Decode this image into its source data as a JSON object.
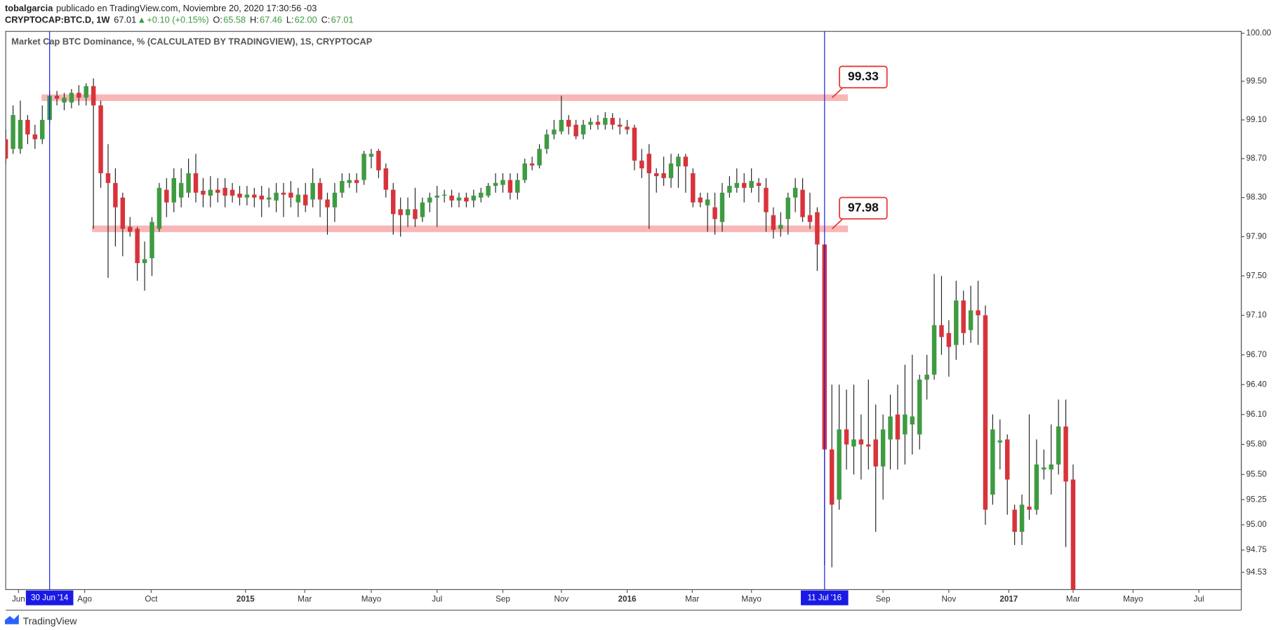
{
  "header": {
    "author": "tobalgarcia",
    "published": "publicado en TradingView.com, Noviembre 20, 2020 17:30:56 -03",
    "symbol": "CRYPTOCAP:BTC.D, 1W",
    "quote_parts": [
      "67.01",
      "▲",
      "+0.10 (+0.15%)",
      "O:",
      "65.58",
      "H:",
      "67.46",
      "L:",
      "62.00",
      "C:",
      "67.01"
    ]
  },
  "footer": {
    "brand": "TradingView"
  },
  "chart_data": {
    "type": "candlestick",
    "title": "Market Cap BTC Dominance, % (CALCULATED BY TRADINGVIEW), 1S, CRYPTOCAP",
    "log_scale": true,
    "grid": false,
    "up_color": "#3f9b42",
    "down_color": "#d8333b",
    "level_color": "#f9b6b6",
    "marker_color": "#1a1ae6",
    "xlim": [
      0,
      169
    ],
    "ylim": [
      94.36,
      100.02
    ],
    "yticks": [
      {
        "value": 100,
        "label": "100.00"
      },
      {
        "value": 99.5,
        "label": "99.50"
      },
      {
        "value": 99.1,
        "label": "99.10"
      },
      {
        "value": 98.7,
        "label": "98.70"
      },
      {
        "value": 98.3,
        "label": "98.30"
      },
      {
        "value": 97.9,
        "label": "97.90"
      },
      {
        "value": 97.5,
        "label": "97.50"
      },
      {
        "value": 97.1,
        "label": "97.10"
      },
      {
        "value": 96.7,
        "label": "96.70"
      },
      {
        "value": 96.4,
        "label": "96.40"
      },
      {
        "value": 96.1,
        "label": "96.10"
      },
      {
        "value": 95.8,
        "label": "95.80"
      },
      {
        "value": 95.5,
        "label": "95.50"
      },
      95.25,
      {
        "value": 95,
        "label": "95.00"
      },
      94.75,
      94.53
    ],
    "xticks": [
      {
        "value": 1.75,
        "label": "Jun"
      },
      {
        "value": 10.8,
        "label": "Ago"
      },
      {
        "value": 19.9,
        "label": "Oct"
      },
      {
        "value": 32.8,
        "label": "2015"
      },
      {
        "value": 40.9,
        "label": "Mar"
      },
      {
        "value": 50,
        "label": "Mayo"
      },
      {
        "value": 59,
        "label": "Jul"
      },
      {
        "value": 68,
        "label": "Sep"
      },
      {
        "value": 76,
        "label": "Nov"
      },
      {
        "value": 85,
        "label": "2016"
      },
      {
        "value": 93.9,
        "label": "Mar"
      },
      {
        "value": 102,
        "label": "Mayo"
      },
      {
        "value": 120,
        "label": "Sep"
      },
      {
        "value": 129,
        "label": "Nov"
      },
      {
        "value": 137.2,
        "label": "2017"
      },
      {
        "value": 146,
        "label": "Mar"
      },
      {
        "value": 154.2,
        "label": "Mayo"
      },
      {
        "value": 163.2,
        "label": "Jul"
      }
    ],
    "markers": [
      {
        "x": 6,
        "label": "30 Jun '14"
      },
      {
        "x": 112,
        "label": "11 Jul '16"
      }
    ],
    "levels": [
      99.33,
      97.98
    ],
    "open": [
      98.9,
      98.8,
      98.8,
      99.1,
      98.95,
      98.9,
      99.1,
      99.35,
      99.28,
      99.28,
      99.38,
      99.33,
      99.45,
      99.25,
      98.55,
      98.45,
      98.3,
      98.0,
      97.98,
      97.63,
      97.68,
      97.98,
      98.38,
      98.25,
      98.3,
      98.35,
      98.55,
      98.37,
      98.32,
      98.38,
      98.4,
      98.38,
      98.34,
      98.3,
      98.33,
      98.32,
      98.28,
      98.27,
      98.35,
      98.35,
      98.25,
      98.33,
      98.28,
      98.45,
      98.28,
      98.2,
      98.35,
      98.45,
      98.48,
      98.48,
      98.72,
      98.78,
      98.6,
      98.38,
      98.18,
      98.12,
      98.18,
      98.1,
      98.25,
      98.3,
      98.32,
      98.32,
      98.27,
      98.3,
      98.27,
      98.3,
      98.32,
      98.42,
      98.43,
      98.48,
      98.35,
      98.48,
      98.65,
      98.63,
      98.8,
      98.95,
      98.98,
      99.1,
      99.05,
      98.95,
      99.05,
      99.08,
      99.05,
      99.12,
      99.05,
      99.03,
      99.02,
      98.68,
      98.75,
      98.55,
      98.55,
      98.5,
      98.62,
      98.72,
      98.55,
      98.3,
      98.22,
      98.2,
      98.05,
      98.35,
      98.4,
      98.45,
      98.4,
      98.45,
      98.4,
      98.12,
      97.98,
      98.08,
      98.3,
      98.38,
      98.12,
      98.15,
      97.82,
      95.75,
      95.25,
      95.95,
      95.78,
      95.85,
      95.8,
      95.85,
      95.58,
      95.85,
      96.1,
      95.9,
      96.0,
      95.9,
      96.45,
      96.5,
      97.0,
      96.92,
      96.8,
      97.25,
      96.95,
      97.15,
      97.1,
      95.3,
      95.82,
      95.85,
      95.15,
      94.93,
      95.18,
      95.15,
      95.55,
      95.55,
      95.6,
      95.98,
      95.45
    ],
    "high": [
      99.0,
      99.25,
      99.3,
      99.15,
      99.05,
      99.25,
      99.4,
      99.4,
      99.38,
      99.42,
      99.46,
      99.48,
      99.53,
      99.3,
      98.85,
      98.6,
      98.35,
      98.1,
      98.0,
      97.85,
      98.1,
      98.45,
      98.5,
      98.6,
      98.6,
      98.7,
      98.75,
      98.5,
      98.52,
      98.5,
      98.5,
      98.45,
      98.42,
      98.42,
      98.4,
      98.42,
      98.4,
      98.45,
      98.45,
      98.47,
      98.4,
      98.45,
      98.6,
      98.5,
      98.35,
      98.45,
      98.55,
      98.55,
      98.55,
      98.78,
      98.8,
      98.8,
      98.65,
      98.45,
      98.3,
      98.3,
      98.4,
      98.3,
      98.35,
      98.42,
      98.38,
      98.38,
      98.35,
      98.35,
      98.38,
      98.4,
      98.45,
      98.55,
      98.55,
      98.55,
      98.55,
      98.7,
      98.72,
      98.85,
      99.0,
      99.1,
      99.35,
      99.15,
      99.1,
      99.1,
      99.12,
      99.15,
      99.18,
      99.17,
      99.12,
      99.1,
      99.05,
      98.8,
      98.85,
      98.6,
      98.72,
      98.75,
      98.75,
      98.75,
      98.6,
      98.35,
      98.35,
      98.35,
      98.45,
      98.52,
      98.6,
      98.55,
      98.6,
      98.5,
      98.5,
      98.2,
      98.15,
      98.35,
      98.5,
      98.5,
      98.35,
      98.2,
      97.82,
      96.4,
      96.4,
      96.35,
      96.4,
      96.1,
      96.45,
      96.2,
      96.1,
      96.3,
      96.4,
      96.6,
      96.7,
      96.5,
      96.7,
      97.52,
      97.5,
      97.05,
      97.45,
      97.35,
      97.4,
      97.45,
      97.2,
      96.1,
      96.05,
      95.9,
      95.2,
      95.3,
      96.1,
      95.85,
      95.75,
      96.0,
      96.25,
      96.25,
      95.6
    ],
    "low": [
      98.65,
      98.75,
      98.75,
      98.85,
      98.8,
      98.85,
      99.05,
      99.25,
      99.2,
      99.22,
      99.25,
      99.25,
      97.98,
      98.4,
      97.48,
      97.8,
      97.7,
      97.9,
      97.45,
      97.35,
      97.5,
      97.95,
      98.1,
      98.15,
      98.2,
      98.3,
      98.25,
      98.2,
      98.2,
      98.25,
      98.2,
      98.25,
      98.22,
      98.22,
      98.2,
      98.1,
      98.2,
      98.15,
      98.1,
      98.2,
      98.1,
      98.15,
      98.2,
      98.1,
      97.92,
      98.05,
      98.3,
      98.4,
      98.35,
      98.43,
      98.6,
      98.5,
      98.3,
      97.92,
      97.9,
      98.0,
      98.0,
      98.05,
      98.15,
      98.0,
      98.25,
      98.2,
      98.2,
      98.2,
      98.2,
      98.25,
      98.3,
      98.35,
      98.35,
      98.28,
      98.28,
      98.45,
      98.58,
      98.6,
      98.75,
      98.9,
      98.95,
      98.95,
      98.9,
      98.9,
      99.0,
      99.0,
      99.0,
      99.0,
      98.95,
      98.95,
      98.58,
      98.5,
      97.98,
      98.35,
      98.42,
      98.4,
      98.4,
      98.35,
      98.2,
      98.2,
      97.95,
      97.92,
      97.95,
      98.3,
      98.35,
      98.25,
      98.35,
      98.25,
      97.95,
      97.88,
      97.9,
      97.92,
      98.15,
      98.05,
      97.98,
      97.55,
      94.6,
      94.58,
      95.15,
      95.55,
      95.5,
      95.45,
      95.55,
      94.93,
      95.25,
      95.55,
      95.55,
      95.6,
      95.7,
      95.75,
      96.25,
      96.45,
      96.7,
      96.48,
      96.65,
      96.8,
      96.82,
      96.8,
      95.0,
      95.2,
      95.55,
      95.1,
      94.8,
      94.8,
      95.05,
      95.1,
      95.45,
      95.3,
      95.5,
      94.78,
      94.1
    ],
    "close": [
      98.7,
      99.15,
      99.1,
      98.95,
      98.9,
      99.1,
      99.35,
      99.32,
      99.33,
      99.38,
      99.33,
      99.45,
      99.25,
      98.55,
      98.45,
      98.2,
      97.98,
      97.95,
      97.63,
      97.67,
      98.05,
      98.4,
      98.25,
      98.5,
      98.45,
      98.55,
      98.35,
      98.33,
      98.38,
      98.35,
      98.32,
      98.32,
      98.3,
      98.33,
      98.3,
      98.28,
      98.3,
      98.35,
      98.33,
      98.3,
      98.33,
      98.22,
      98.45,
      98.28,
      98.2,
      98.35,
      98.47,
      98.48,
      98.45,
      98.75,
      98.75,
      98.58,
      98.38,
      98.13,
      98.12,
      98.18,
      98.08,
      98.25,
      98.3,
      98.32,
      98.33,
      98.27,
      98.3,
      98.26,
      98.32,
      98.35,
      98.42,
      98.45,
      98.48,
      98.35,
      98.48,
      98.65,
      98.63,
      98.8,
      98.95,
      99.0,
      99.1,
      99.03,
      98.93,
      99.05,
      99.08,
      99.05,
      99.12,
      99.05,
      99.03,
      99.0,
      98.68,
      98.6,
      98.55,
      98.52,
      98.5,
      98.65,
      98.72,
      98.62,
      98.25,
      98.25,
      98.28,
      98.08,
      98.35,
      98.42,
      98.45,
      98.4,
      98.47,
      98.42,
      98.15,
      97.97,
      98.02,
      98.3,
      98.4,
      98.1,
      98.05,
      97.82,
      95.75,
      95.2,
      95.95,
      95.8,
      95.85,
      95.8,
      95.78,
      95.58,
      95.95,
      96.08,
      95.85,
      96.1,
      96.08,
      96.45,
      96.5,
      97.0,
      96.88,
      96.78,
      97.25,
      96.92,
      97.15,
      97.1,
      95.15,
      95.95,
      95.84,
      95.45,
      94.93,
      95.2,
      95.15,
      95.6,
      95.57,
      95.6,
      95.98,
      95.43,
      94.2
    ]
  }
}
